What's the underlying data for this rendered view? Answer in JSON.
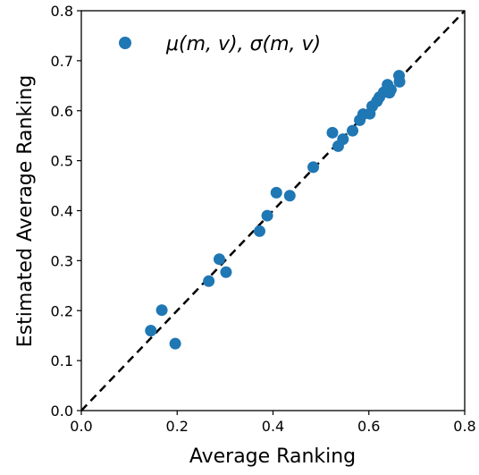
{
  "chart_data": {
    "type": "scatter",
    "title": "",
    "xlabel": "Average Ranking",
    "ylabel": "Estimated Average Ranking",
    "xlim": [
      0.0,
      0.8
    ],
    "ylim": [
      0.0,
      0.8
    ],
    "xticks": [
      "0.0",
      "0.2",
      "0.4",
      "0.6",
      "0.8"
    ],
    "yticks": [
      "0.0",
      "0.1",
      "0.2",
      "0.3",
      "0.4",
      "0.5",
      "0.6",
      "0.7",
      "0.8"
    ],
    "grid": false,
    "legend_position": "upper-left",
    "reference_line": {
      "style": "dashed",
      "color": "#000000",
      "from": [
        0.0,
        0.0
      ],
      "to": [
        0.8,
        0.8
      ]
    },
    "series": [
      {
        "name": "μ(m, v), σ(m, v)",
        "color": "#1f77b4",
        "points": [
          {
            "x": 0.145,
            "y": 0.16
          },
          {
            "x": 0.168,
            "y": 0.201
          },
          {
            "x": 0.196,
            "y": 0.134
          },
          {
            "x": 0.266,
            "y": 0.259
          },
          {
            "x": 0.288,
            "y": 0.303
          },
          {
            "x": 0.302,
            "y": 0.277
          },
          {
            "x": 0.372,
            "y": 0.359
          },
          {
            "x": 0.388,
            "y": 0.39
          },
          {
            "x": 0.407,
            "y": 0.436
          },
          {
            "x": 0.435,
            "y": 0.43
          },
          {
            "x": 0.484,
            "y": 0.487
          },
          {
            "x": 0.524,
            "y": 0.556
          },
          {
            "x": 0.536,
            "y": 0.529
          },
          {
            "x": 0.546,
            "y": 0.543
          },
          {
            "x": 0.566,
            "y": 0.56
          },
          {
            "x": 0.581,
            "y": 0.581
          },
          {
            "x": 0.588,
            "y": 0.593
          },
          {
            "x": 0.602,
            "y": 0.594
          },
          {
            "x": 0.607,
            "y": 0.609
          },
          {
            "x": 0.617,
            "y": 0.619
          },
          {
            "x": 0.622,
            "y": 0.627
          },
          {
            "x": 0.631,
            "y": 0.637
          },
          {
            "x": 0.639,
            "y": 0.652
          },
          {
            "x": 0.643,
            "y": 0.636
          },
          {
            "x": 0.646,
            "y": 0.642
          },
          {
            "x": 0.663,
            "y": 0.67
          },
          {
            "x": 0.664,
            "y": 0.658
          }
        ]
      }
    ]
  }
}
